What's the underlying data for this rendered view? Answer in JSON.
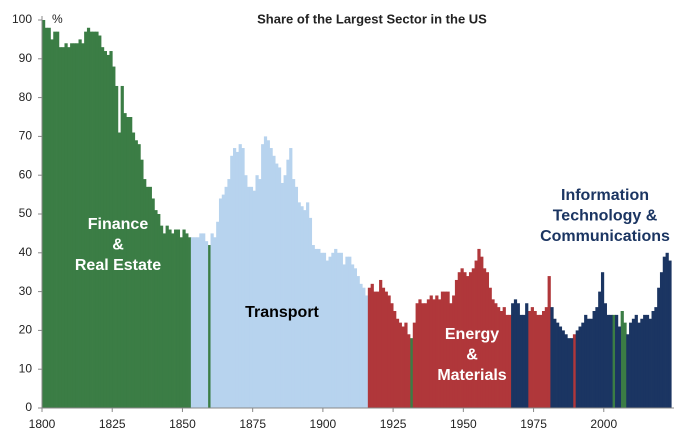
{
  "chart_data": {
    "type": "bar",
    "title": "Share of the Largest Sector in the US",
    "y_unit": "%",
    "xlim": [
      1800,
      2025
    ],
    "xticks": [
      1800,
      1825,
      1850,
      1875,
      1900,
      1925,
      1950,
      1975,
      2000
    ],
    "ylim": [
      0,
      100
    ],
    "yticks": [
      0,
      10,
      20,
      30,
      40,
      50,
      60,
      70,
      80,
      90,
      100
    ],
    "grid": false,
    "series": [
      {
        "name": [
          "Finance",
          "&",
          "Real Estate"
        ],
        "color": "#3b7d45",
        "label_color": "#ffffff",
        "x": [
          1800,
          1801,
          1802,
          1803,
          1804,
          1805,
          1806,
          1807,
          1808,
          1809,
          1810,
          1811,
          1812,
          1813,
          1814,
          1815,
          1816,
          1817,
          1818,
          1819,
          1820,
          1821,
          1822,
          1823,
          1824,
          1825,
          1826,
          1827,
          1828,
          1829,
          1830,
          1831,
          1832,
          1833,
          1834,
          1835,
          1836,
          1837,
          1838,
          1839,
          1840,
          1841,
          1842,
          1843,
          1844,
          1845,
          1846,
          1847,
          1848,
          1849,
          1850,
          1851,
          1852,
          1859,
          1931,
          2003,
          2006,
          2007
        ],
        "values": [
          100,
          98,
          98,
          95,
          97,
          97,
          93,
          93,
          94,
          93,
          94,
          94,
          94,
          95,
          94,
          97,
          98,
          97,
          97,
          97,
          96,
          93,
          92,
          91,
          92,
          88,
          83,
          71,
          83,
          76,
          75,
          75,
          71,
          69,
          68,
          64,
          59,
          57,
          57,
          54,
          51,
          50,
          47,
          45,
          47,
          46,
          45,
          46,
          46,
          44,
          46,
          45,
          44,
          42,
          18,
          24,
          25,
          22
        ]
      },
      {
        "name": [
          "Transport"
        ],
        "color": "#b7d3ee",
        "label_color": "#000000",
        "x": [
          1853,
          1854,
          1855,
          1856,
          1857,
          1858,
          1860,
          1861,
          1862,
          1863,
          1864,
          1865,
          1866,
          1867,
          1868,
          1869,
          1870,
          1871,
          1872,
          1873,
          1874,
          1875,
          1876,
          1877,
          1878,
          1879,
          1880,
          1881,
          1882,
          1883,
          1884,
          1885,
          1886,
          1887,
          1888,
          1889,
          1890,
          1891,
          1892,
          1893,
          1894,
          1895,
          1896,
          1897,
          1898,
          1899,
          1900,
          1901,
          1902,
          1903,
          1904,
          1905,
          1906,
          1907,
          1908,
          1909,
          1910,
          1911,
          1912,
          1913,
          1914,
          1915
        ],
        "values": [
          44,
          44,
          44,
          45,
          45,
          43,
          45,
          44,
          48,
          54,
          55,
          57,
          59,
          65,
          67,
          66,
          68,
          67,
          60,
          57,
          57,
          56,
          60,
          59,
          68,
          70,
          69,
          67,
          65,
          63,
          62,
          58,
          60,
          64,
          67,
          59,
          57,
          53,
          52,
          51,
          53,
          49,
          42,
          41,
          41,
          40,
          40,
          38,
          39,
          40,
          41,
          40,
          40,
          37,
          39,
          39,
          37,
          36,
          34,
          32,
          31,
          29
        ]
      },
      {
        "name": [
          "Energy",
          "&",
          "Materials"
        ],
        "color": "#b0373a",
        "label_color": "#ffffff",
        "x": [
          1916,
          1917,
          1918,
          1919,
          1920,
          1921,
          1922,
          1923,
          1924,
          1925,
          1926,
          1927,
          1928,
          1929,
          1930,
          1932,
          1933,
          1934,
          1935,
          1936,
          1937,
          1938,
          1939,
          1940,
          1941,
          1942,
          1943,
          1944,
          1945,
          1946,
          1947,
          1948,
          1949,
          1950,
          1951,
          1952,
          1953,
          1954,
          1955,
          1956,
          1957,
          1958,
          1959,
          1960,
          1961,
          1962,
          1963,
          1964,
          1965,
          1966,
          1973,
          1974,
          1975,
          1976,
          1977,
          1978,
          1979,
          1980,
          1989
        ],
        "values": [
          31,
          32,
          30,
          30,
          33,
          31,
          30,
          29,
          27,
          25,
          23,
          22,
          21,
          22,
          19,
          22,
          27,
          28,
          27,
          27,
          28,
          29,
          28,
          29,
          28,
          30,
          30,
          30,
          27,
          29,
          33,
          35,
          36,
          35,
          34,
          35,
          36,
          38,
          41,
          39,
          36,
          35,
          31,
          28,
          27,
          26,
          25,
          26,
          24,
          24,
          25,
          26,
          25,
          24,
          24,
          25,
          26,
          34,
          19
        ]
      },
      {
        "name": [
          "Information",
          "Technology &",
          "Communications"
        ],
        "color": "#1b3562",
        "label_color": "#1b3562",
        "x": [
          1967,
          1968,
          1969,
          1970,
          1971,
          1972,
          1981,
          1982,
          1983,
          1984,
          1985,
          1986,
          1987,
          1988,
          1990,
          1991,
          1992,
          1993,
          1994,
          1995,
          1996,
          1997,
          1998,
          1999,
          2000,
          2001,
          2002,
          2004,
          2005,
          2008,
          2009,
          2010,
          2011,
          2012,
          2013,
          2014,
          2015,
          2016,
          2017,
          2018,
          2019,
          2020,
          2021,
          2022,
          2023
        ],
        "values": [
          27,
          28,
          27,
          24,
          24,
          27,
          26,
          23,
          22,
          21,
          20,
          19,
          18,
          18,
          20,
          21,
          22,
          24,
          23,
          23,
          25,
          26,
          30,
          35,
          27,
          24,
          24,
          24,
          21,
          19,
          22,
          23,
          24,
          22,
          23,
          24,
          24,
          23,
          25,
          26,
          31,
          35,
          39,
          40,
          38
        ]
      }
    ]
  }
}
